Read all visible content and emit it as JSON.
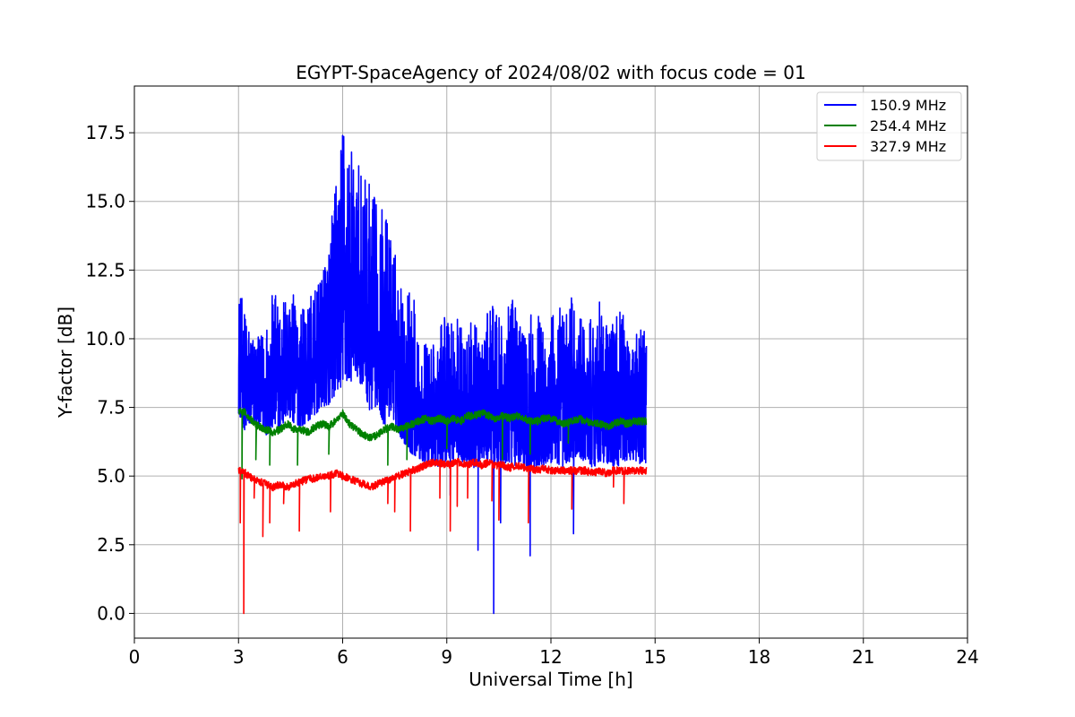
{
  "chart_data": {
    "type": "line",
    "title": "EGYPT-SpaceAgency of 2024/08/02 with focus code = 01",
    "xlabel": "Universal Time [h]",
    "ylabel": "Y-factor [dB]",
    "xlim": [
      0,
      24
    ],
    "ylim": [
      -0.9,
      19.2
    ],
    "xticks": [
      0,
      3,
      6,
      9,
      12,
      15,
      18,
      21,
      24
    ],
    "xtick_labels": [
      "0",
      "3",
      "6",
      "9",
      "12",
      "15",
      "18",
      "21",
      "24"
    ],
    "yticks": [
      0,
      2.5,
      5,
      7.5,
      10,
      12.5,
      15,
      17.5
    ],
    "ytick_labels": [
      "0.0",
      "2.5",
      "5.0",
      "7.5",
      "10.0",
      "12.5",
      "15.0",
      "17.5"
    ],
    "grid": true,
    "legend_position": "top-right",
    "series": [
      {
        "name": "150.9 MHz",
        "color": "#0000ff",
        "x": [
          3.0,
          3.2,
          3.4,
          3.6,
          3.8,
          4.0,
          4.2,
          4.4,
          4.6,
          4.8,
          5.0,
          5.2,
          5.4,
          5.6,
          5.8,
          6.0,
          6.2,
          6.4,
          6.6,
          6.8,
          7.0,
          7.2,
          7.4,
          7.6,
          7.8,
          8.0,
          8.2,
          8.4,
          8.6,
          8.8,
          9.0,
          9.2,
          9.4,
          9.6,
          9.8,
          10.0,
          10.2,
          10.4,
          10.6,
          10.8,
          11.0,
          11.2,
          11.4,
          11.6,
          11.8,
          12.0,
          12.2,
          12.4,
          12.6,
          12.8,
          13.0,
          13.2,
          13.4,
          13.6,
          13.8,
          14.0,
          14.2,
          14.4,
          14.6,
          14.75
        ],
        "min": [
          7.3,
          6.6,
          6.9,
          6.8,
          6.5,
          6.7,
          6.6,
          7.2,
          6.9,
          6.8,
          7.0,
          7.2,
          7.5,
          7.6,
          8.0,
          8.3,
          8.4,
          8.6,
          8.2,
          7.3,
          7.6,
          6.8,
          7.3,
          6.6,
          6.1,
          5.8,
          5.6,
          5.5,
          5.4,
          5.3,
          5.6,
          5.6,
          5.5,
          5.4,
          5.3,
          5.6,
          5.5,
          5.5,
          5.4,
          5.3,
          5.4,
          5.3,
          5.1,
          5.4,
          5.4,
          5.4,
          5.3,
          5.3,
          5.6,
          5.5,
          5.6,
          5.3,
          5.5,
          5.5,
          5.3,
          5.4,
          5.6,
          5.6,
          5.4,
          5.5
        ],
        "max": [
          12.0,
          11.0,
          10.4,
          10.0,
          10.8,
          11.8,
          11.4,
          12.0,
          11.6,
          11.2,
          11.4,
          11.8,
          12.2,
          14.0,
          15.6,
          18.3,
          17.2,
          16.4,
          16.1,
          15.6,
          15.0,
          14.9,
          14.0,
          12.6,
          11.6,
          12.3,
          9.6,
          10.0,
          9.8,
          10.2,
          11.8,
          11.2,
          10.6,
          10.6,
          10.6,
          9.8,
          11.2,
          11.2,
          10.4,
          11.4,
          11.4,
          10.6,
          11.0,
          11.0,
          10.6,
          11.0,
          11.4,
          11.0,
          11.9,
          10.8,
          10.6,
          11.0,
          11.6,
          10.6,
          10.8,
          11.2,
          10.4,
          10.4,
          10.6,
          10.2
        ],
        "dips": [
          [
            9.9,
            2.3
          ],
          [
            10.35,
            0.0
          ],
          [
            10.55,
            3.3
          ],
          [
            11.4,
            2.1
          ],
          [
            12.65,
            2.9
          ],
          [
            9.1,
            4.3
          ]
        ]
      },
      {
        "name": "254.4 MHz",
        "color": "#008000",
        "x": [
          3.0,
          3.2,
          3.4,
          3.6,
          3.8,
          4.0,
          4.2,
          4.4,
          4.6,
          4.8,
          5.0,
          5.2,
          5.4,
          5.6,
          5.8,
          6.0,
          6.2,
          6.4,
          6.6,
          6.8,
          7.0,
          7.2,
          7.4,
          7.6,
          7.8,
          8.0,
          8.2,
          8.4,
          8.6,
          8.8,
          9.0,
          9.2,
          9.4,
          9.6,
          9.8,
          10.0,
          10.2,
          10.4,
          10.6,
          10.8,
          11.0,
          11.2,
          11.4,
          11.6,
          11.8,
          12.0,
          12.2,
          12.4,
          12.6,
          12.8,
          13.0,
          13.2,
          13.4,
          13.6,
          13.8,
          14.0,
          14.2,
          14.4,
          14.6,
          14.75
        ],
        "y": [
          7.4,
          7.3,
          7.0,
          6.8,
          6.7,
          6.6,
          6.7,
          6.9,
          6.7,
          6.7,
          6.6,
          6.8,
          6.9,
          6.8,
          7.0,
          7.3,
          6.9,
          6.7,
          6.5,
          6.4,
          6.5,
          6.7,
          6.8,
          6.7,
          6.8,
          6.9,
          7.0,
          7.1,
          7.0,
          7.1,
          7.0,
          7.1,
          7.0,
          7.2,
          7.2,
          7.3,
          7.2,
          7.1,
          7.2,
          7.1,
          7.2,
          7.1,
          7.0,
          7.0,
          7.1,
          7.1,
          7.0,
          6.9,
          7.0,
          7.1,
          7.0,
          6.9,
          6.9,
          6.8,
          6.9,
          7.0,
          6.9,
          7.0,
          7.0,
          7.0
        ],
        "dips": [
          [
            3.1,
            4.9
          ],
          [
            3.5,
            5.6
          ],
          [
            3.9,
            5.4
          ],
          [
            4.7,
            5.4
          ],
          [
            5.6,
            5.8
          ],
          [
            7.3,
            5.4
          ],
          [
            7.85,
            5.6
          ],
          [
            9.0,
            6.0
          ],
          [
            10.6,
            5.6
          ],
          [
            11.4,
            5.8
          ],
          [
            12.5,
            6.2
          ]
        ]
      },
      {
        "name": "327.9 MHz",
        "color": "#ff0000",
        "x": [
          3.0,
          3.2,
          3.4,
          3.6,
          3.8,
          4.0,
          4.2,
          4.4,
          4.6,
          4.8,
          5.0,
          5.2,
          5.4,
          5.6,
          5.8,
          6.0,
          6.2,
          6.4,
          6.6,
          6.8,
          7.0,
          7.2,
          7.4,
          7.6,
          7.8,
          8.0,
          8.2,
          8.4,
          8.6,
          8.8,
          9.0,
          9.2,
          9.4,
          9.6,
          9.8,
          10.0,
          10.2,
          10.4,
          10.6,
          10.8,
          11.0,
          11.2,
          11.4,
          11.6,
          11.8,
          12.0,
          12.2,
          12.4,
          12.6,
          12.8,
          13.0,
          13.2,
          13.4,
          13.6,
          13.8,
          14.0,
          14.2,
          14.4,
          14.6,
          14.75
        ],
        "y": [
          5.2,
          5.1,
          4.9,
          4.8,
          4.7,
          4.6,
          4.7,
          4.6,
          4.7,
          4.8,
          4.9,
          4.9,
          5.0,
          5.0,
          5.1,
          5.0,
          4.9,
          4.8,
          4.7,
          4.6,
          4.7,
          4.8,
          4.9,
          5.0,
          5.1,
          5.2,
          5.3,
          5.4,
          5.5,
          5.5,
          5.4,
          5.5,
          5.5,
          5.4,
          5.5,
          5.4,
          5.5,
          5.4,
          5.4,
          5.3,
          5.4,
          5.3,
          5.3,
          5.2,
          5.3,
          5.2,
          5.2,
          5.2,
          5.2,
          5.2,
          5.2,
          5.1,
          5.2,
          5.1,
          5.2,
          5.2,
          5.2,
          5.2,
          5.2,
          5.2
        ],
        "dips": [
          [
            3.05,
            3.3
          ],
          [
            3.15,
            0.0
          ],
          [
            3.45,
            4.2
          ],
          [
            3.7,
            2.8
          ],
          [
            3.9,
            3.3
          ],
          [
            4.3,
            4.0
          ],
          [
            4.75,
            3.0
          ],
          [
            5.65,
            3.7
          ],
          [
            7.3,
            4.0
          ],
          [
            7.5,
            3.7
          ],
          [
            7.95,
            3.0
          ],
          [
            8.8,
            4.2
          ],
          [
            9.1,
            3.0
          ],
          [
            9.3,
            3.9
          ],
          [
            9.6,
            4.2
          ],
          [
            10.3,
            4.1
          ],
          [
            10.5,
            3.4
          ],
          [
            11.35,
            3.3
          ],
          [
            12.6,
            3.8
          ],
          [
            13.8,
            4.6
          ],
          [
            14.1,
            4.0
          ]
        ]
      }
    ]
  }
}
